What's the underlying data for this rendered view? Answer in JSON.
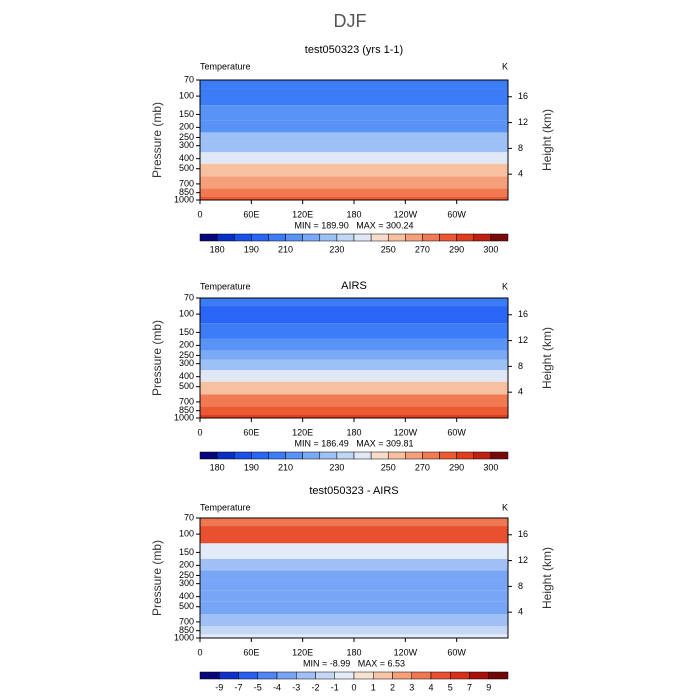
{
  "title": "DJF",
  "chart_data": [
    {
      "type": "contour",
      "title": "test050323 (yrs 1-1)",
      "left_label": "Temperature",
      "right_label": "K",
      "ylabel": "Pressure (mb)",
      "y2label": "Height (km)",
      "xlim": [
        0,
        360
      ],
      "xticks": [
        0,
        {
          "value": 60,
          "label": "60E"
        },
        {
          "value": 120,
          "label": "120E"
        },
        180,
        {
          "value": 240,
          "label": "120W"
        },
        {
          "value": 300,
          "label": "60W"
        }
      ],
      "ylim": [
        1000,
        70
      ],
      "ylog": true,
      "yticks": [
        70,
        100,
        150,
        200,
        250,
        300,
        400,
        500,
        700,
        850,
        1000
      ],
      "y2lim": [
        0,
        18.6
      ],
      "y2ticks": [
        4,
        8,
        12,
        16
      ],
      "stats": "MIN = 189.90   MAX = 300.24",
      "profile_p": [
        1000,
        850,
        700,
        500,
        400,
        300,
        250,
        200,
        150,
        100,
        70
      ],
      "profile_t": [
        285,
        278,
        268,
        252,
        240,
        226,
        220,
        214,
        210,
        200,
        200
      ],
      "levels": [
        180,
        185,
        190,
        200,
        210,
        215,
        220,
        230,
        240,
        245,
        250,
        260,
        270,
        280,
        290,
        295,
        300
      ],
      "level_ticks": [
        180,
        190,
        210,
        230,
        250,
        270,
        290,
        300
      ],
      "colors": [
        "#08087a",
        "#0a2fc4",
        "#1a4fe8",
        "#2a66f5",
        "#3d7cf7",
        "#5893f5",
        "#7aa9f5",
        "#9dc0f5",
        "#c0d6f5",
        "#e0e8f5",
        "#f7dccb",
        "#f7c0a0",
        "#f5a07a",
        "#f27a52",
        "#eb5a33",
        "#e03c1e",
        "#c02010",
        "#7a0a0a"
      ]
    },
    {
      "type": "contour",
      "title": "AIRS",
      "left_label": "Temperature",
      "right_label": "K",
      "ylabel": "Pressure (mb)",
      "y2label": "Height (km)",
      "xlim": [
        0,
        360
      ],
      "xticks": [
        0,
        {
          "value": 60,
          "label": "60E"
        },
        {
          "value": 120,
          "label": "120E"
        },
        180,
        {
          "value": 240,
          "label": "120W"
        },
        {
          "value": 300,
          "label": "60W"
        }
      ],
      "ylim": [
        1000,
        70
      ],
      "ylog": true,
      "yticks": [
        70,
        100,
        150,
        200,
        250,
        300,
        400,
        500,
        700,
        850,
        1000
      ],
      "y2lim": [
        0,
        18.6
      ],
      "y2ticks": [
        4,
        8,
        12,
        16
      ],
      "stats": "MIN = 186.49   MAX = 309.81",
      "profile_p": [
        1000,
        850,
        700,
        500,
        400,
        300,
        250,
        200,
        150,
        100,
        70
      ],
      "profile_t": [
        290,
        282,
        270,
        252,
        240,
        226,
        218,
        212,
        206,
        196,
        200
      ],
      "levels": [
        180,
        185,
        190,
        200,
        210,
        215,
        220,
        230,
        240,
        245,
        250,
        260,
        270,
        280,
        290,
        295,
        300
      ],
      "level_ticks": [
        180,
        190,
        210,
        230,
        250,
        270,
        290,
        300
      ],
      "colors": [
        "#08087a",
        "#0a2fc4",
        "#1a4fe8",
        "#2a66f5",
        "#3d7cf7",
        "#5893f5",
        "#7aa9f5",
        "#9dc0f5",
        "#c0d6f5",
        "#e0e8f5",
        "#f7dccb",
        "#f7c0a0",
        "#f5a07a",
        "#f27a52",
        "#eb5a33",
        "#e03c1e",
        "#c02010",
        "#7a0a0a"
      ]
    },
    {
      "type": "contour",
      "title": "test050323 - AIRS",
      "left_label": "Temperature",
      "right_label": "K",
      "ylabel": "Pressure (mb)",
      "y2label": "Height (km)",
      "xlim": [
        0,
        360
      ],
      "xticks": [
        0,
        {
          "value": 60,
          "label": "60E"
        },
        {
          "value": 120,
          "label": "120E"
        },
        180,
        {
          "value": 240,
          "label": "120W"
        },
        {
          "value": 300,
          "label": "60W"
        }
      ],
      "ylim": [
        1000,
        70
      ],
      "ylog": true,
      "yticks": [
        70,
        100,
        150,
        200,
        250,
        300,
        400,
        500,
        700,
        850,
        1000
      ],
      "y2lim": [
        0,
        18.6
      ],
      "y2ticks": [
        4,
        8,
        12,
        16
      ],
      "stats": "MIN = -8.99   MAX = 6.53",
      "profile_p": [
        1000,
        850,
        700,
        500,
        400,
        300,
        250,
        200,
        150,
        100,
        70
      ],
      "profile_t": [
        -0.5,
        -1.5,
        -2.5,
        -3.5,
        -3.5,
        -3.5,
        -3.5,
        -2.5,
        -0.5,
        4.5,
        3.5
      ],
      "levels": [
        -9,
        -7,
        -5,
        -4,
        -3,
        -2,
        -1,
        0,
        1,
        2,
        3,
        4,
        5,
        7,
        9
      ],
      "level_ticks": [
        -9,
        -7,
        -5,
        -4,
        -3,
        -2,
        -1,
        0,
        1,
        2,
        3,
        4,
        5,
        7,
        9
      ],
      "colors": [
        "#08087a",
        "#1030c8",
        "#2a60f0",
        "#4f85f5",
        "#78a5f5",
        "#a0c0f5",
        "#c4d8f5",
        "#e2ebf7",
        "#f7e2d2",
        "#f7c4a8",
        "#f5a07a",
        "#f07850",
        "#e85030",
        "#d83018",
        "#a81008",
        "#700808"
      ]
    }
  ]
}
